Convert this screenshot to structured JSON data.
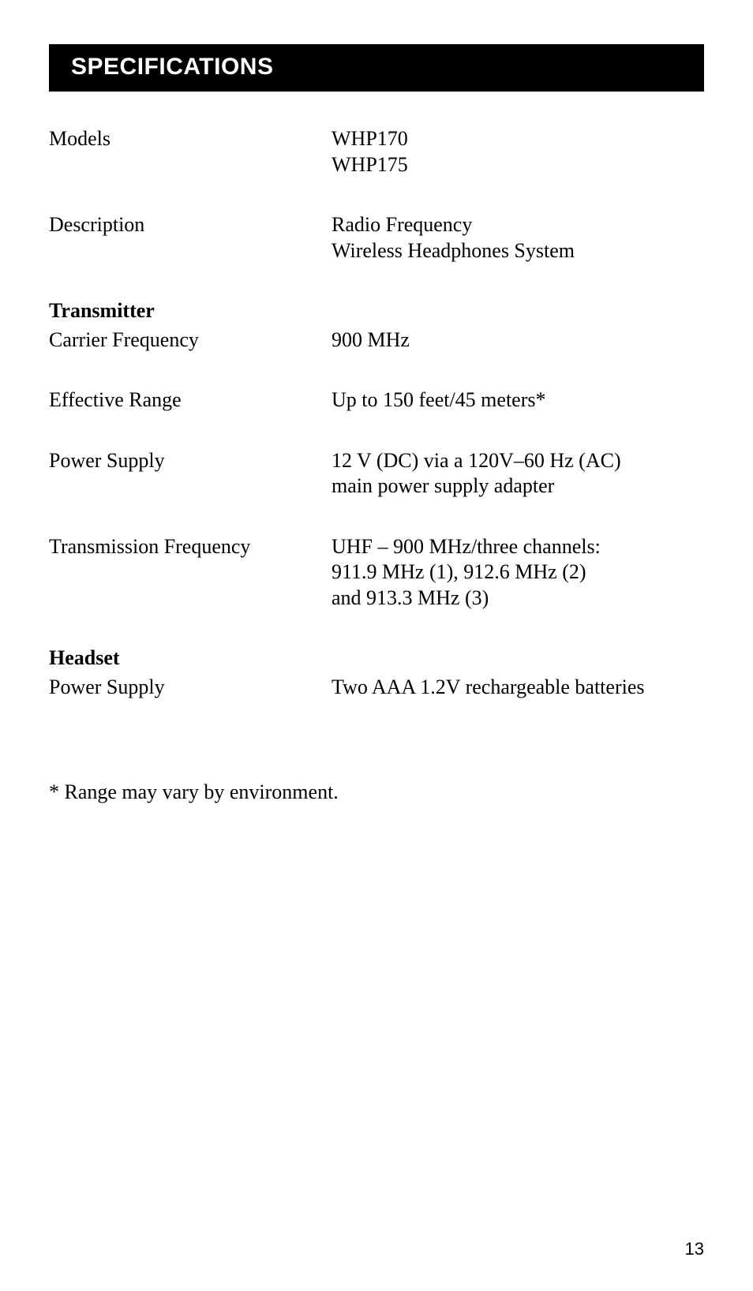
{
  "header": {
    "title": "SPECIFICATIONS"
  },
  "specs": {
    "models": {
      "label": "Models",
      "value": "WHP170\nWHP175"
    },
    "description": {
      "label": "Description",
      "value": "Radio Frequency\nWireless Headphones System"
    },
    "transmitter_section": {
      "label": "Transmitter"
    },
    "carrier_frequency": {
      "label": "Carrier Frequency",
      "value": "900 MHz"
    },
    "effective_range": {
      "label": "Effective Range",
      "value": "Up to 150 feet/45 meters*"
    },
    "power_supply_tx": {
      "label": "Power Supply",
      "value": "12 V (DC) via a 120V–60 Hz (AC)\nmain power supply adapter"
    },
    "transmission_frequency": {
      "label": "Transmission Frequency",
      "value": "UHF – 900 MHz/three channels:\n911.9 MHz (1), 912.6 MHz (2)\nand 913.3 MHz (3)"
    },
    "headset_section": {
      "label": "Headset"
    },
    "power_supply_hs": {
      "label": "Power Supply",
      "value": "Two AAA 1.2V rechargeable batteries"
    }
  },
  "footnote": "* Range may vary by environment.",
  "page_number": "13",
  "colors": {
    "header_bg": "#000000",
    "header_fg": "#ffffff",
    "page_bg": "#ffffff",
    "text": "#000000"
  },
  "typography": {
    "body_font": "Georgia serif",
    "header_font": "Arial",
    "body_size_pt": 19,
    "header_size_pt": 22
  }
}
